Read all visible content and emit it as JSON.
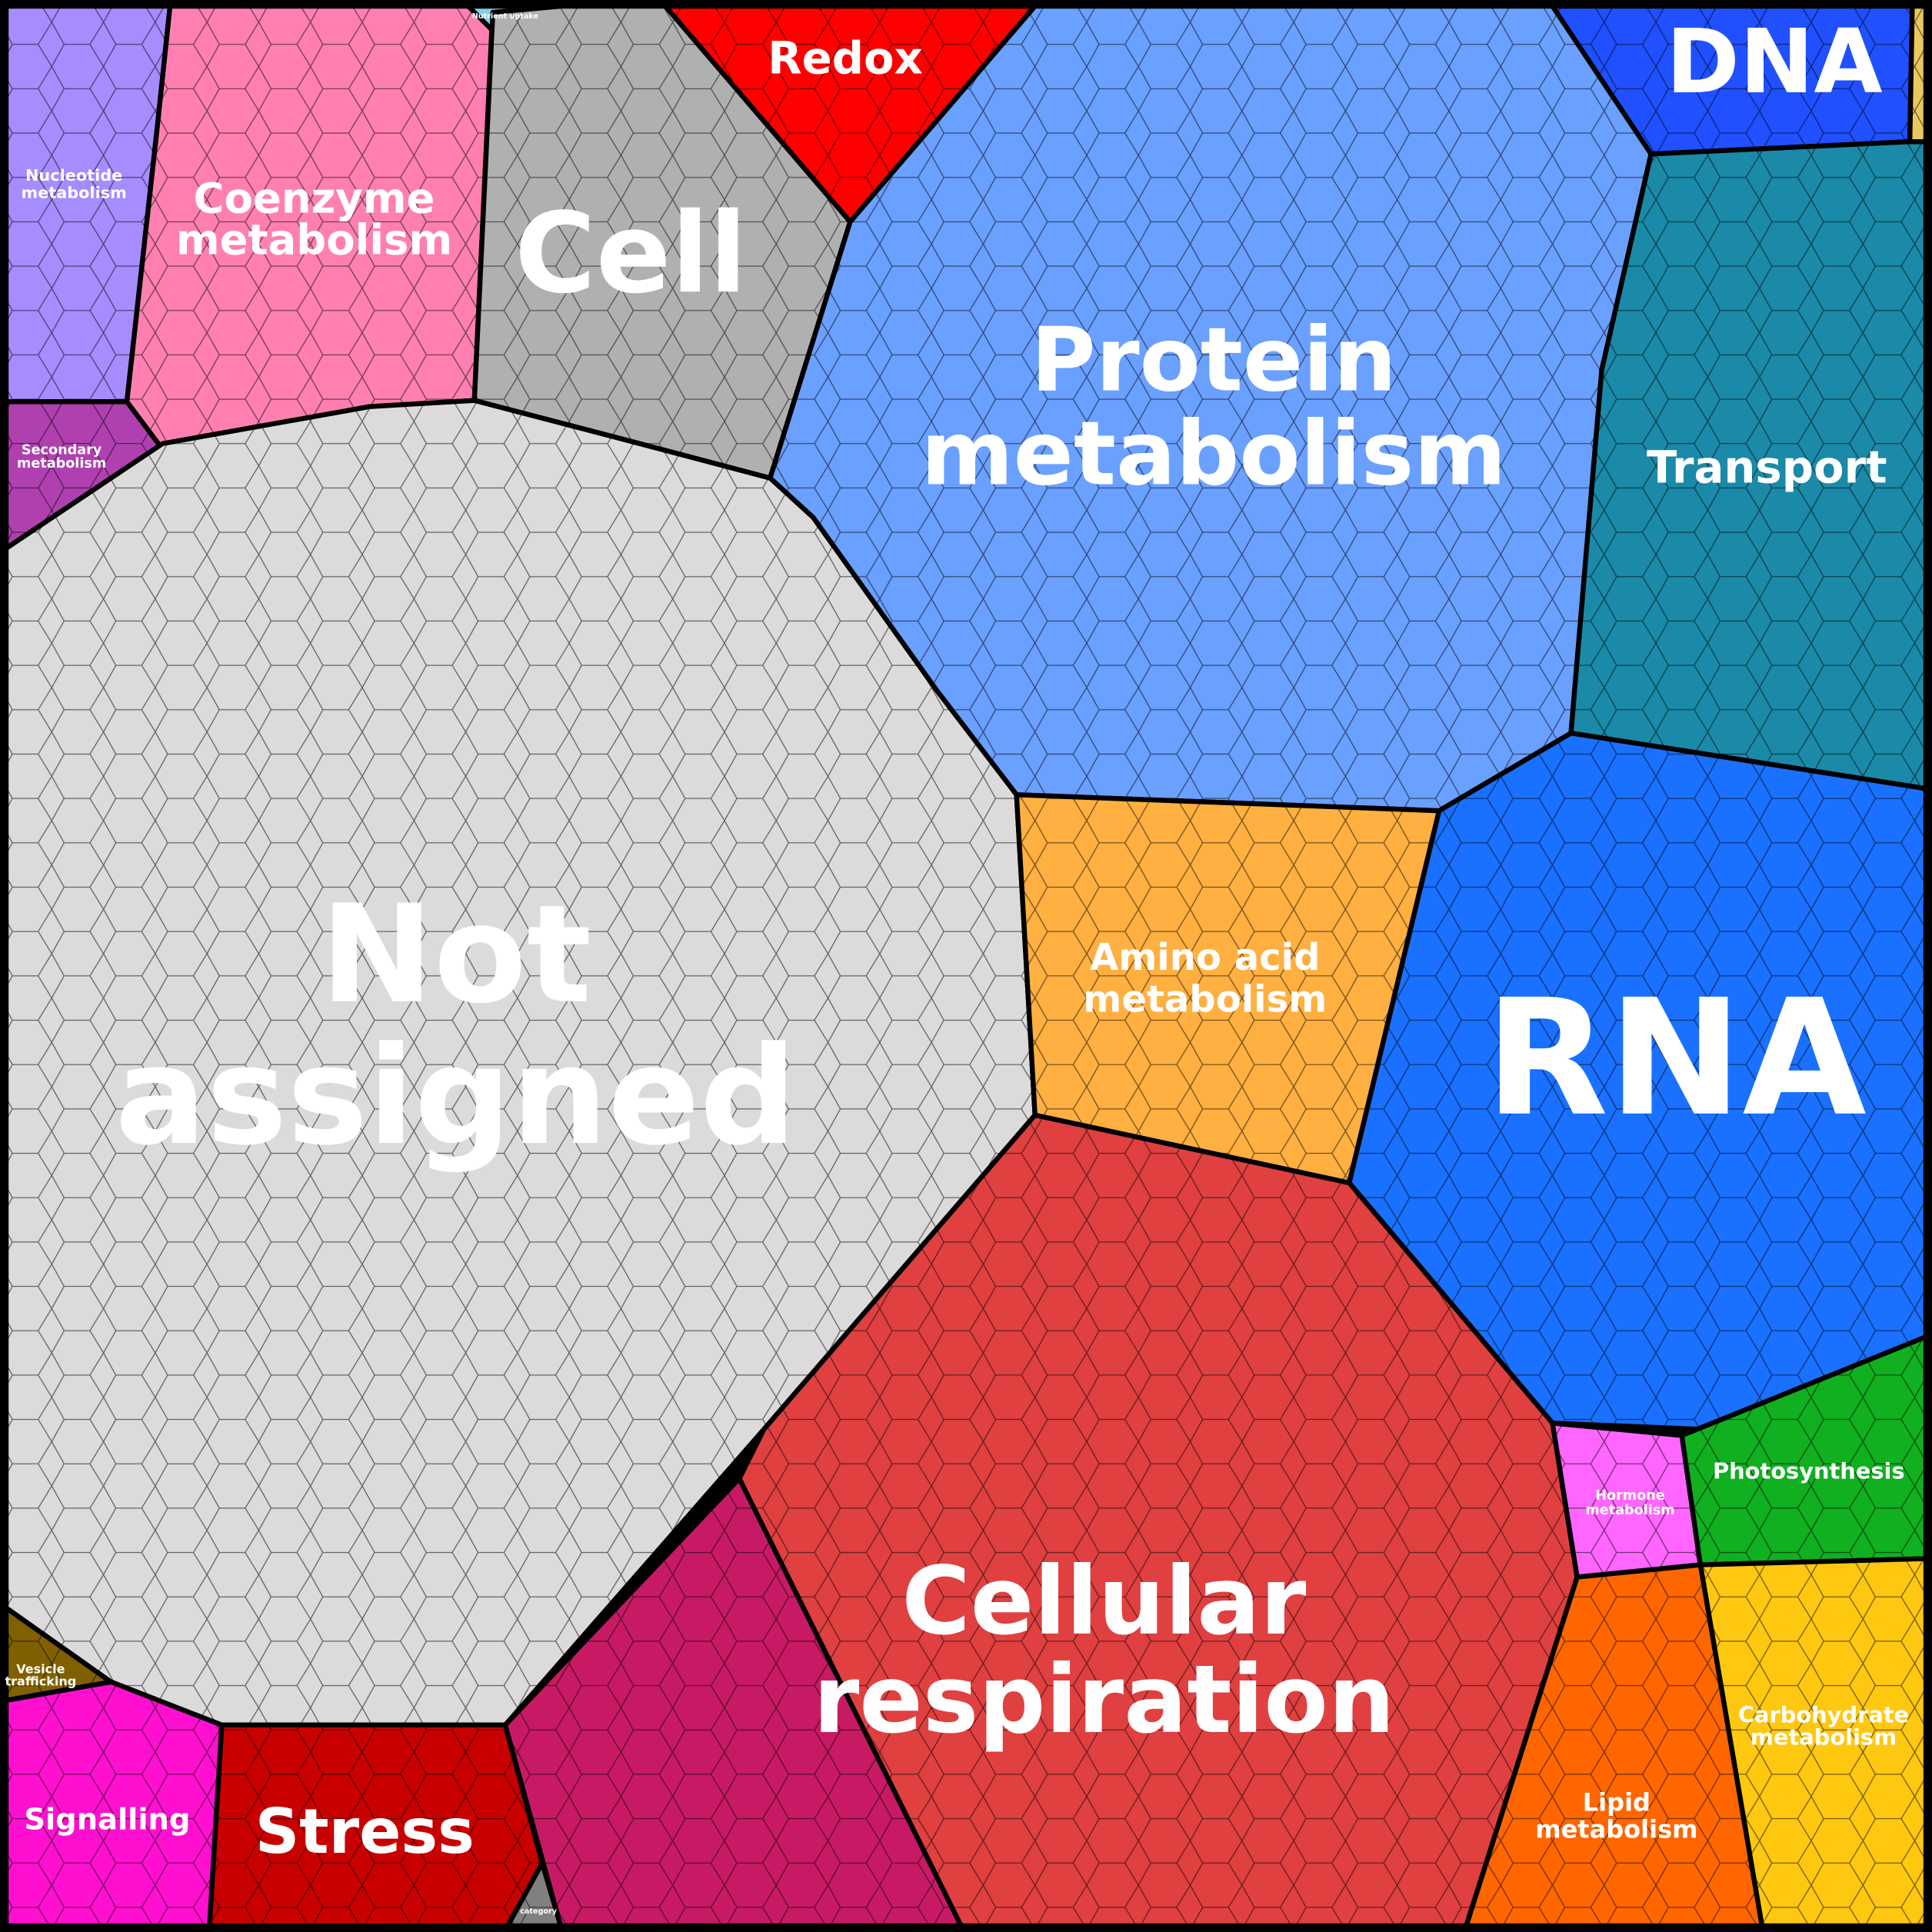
{
  "regions": [
    {
      "label": [
        "Nucleotide",
        "metabolism"
      ]
    },
    {
      "label": [
        "Secondary",
        "metabolism"
      ]
    },
    {
      "label": [
        "Coenzyme",
        "metabolism"
      ]
    },
    {
      "label": [
        "Nutrient uptake"
      ]
    },
    {
      "label": [
        "Cell"
      ]
    },
    {
      "label": [
        "Redox"
      ]
    },
    {
      "label": [
        "Protein",
        "metabolism"
      ]
    },
    {
      "label": [
        "DNA"
      ]
    },
    {
      "label": [
        "Transport"
      ]
    },
    {
      "label": [
        "Not",
        "assigned"
      ]
    },
    {
      "label": [
        "Amino acid",
        "metabolism"
      ]
    },
    {
      "label": [
        "RNA"
      ]
    },
    {
      "label": [
        "Cellular",
        "respiration"
      ]
    },
    {
      "label": [
        "category"
      ]
    },
    {
      "label": [
        "Stress"
      ]
    },
    {
      "label": [
        "Signalling"
      ]
    },
    {
      "label": [
        "Vesicle",
        "trafficking"
      ]
    },
    {
      "label": [
        "Hormone",
        "metabolism"
      ]
    },
    {
      "label": [
        "Photosynthesis"
      ]
    },
    {
      "label": [
        "Carbohydrate",
        "metabolism"
      ]
    },
    {
      "label": [
        "Lipid",
        "metabolism"
      ]
    }
  ]
}
